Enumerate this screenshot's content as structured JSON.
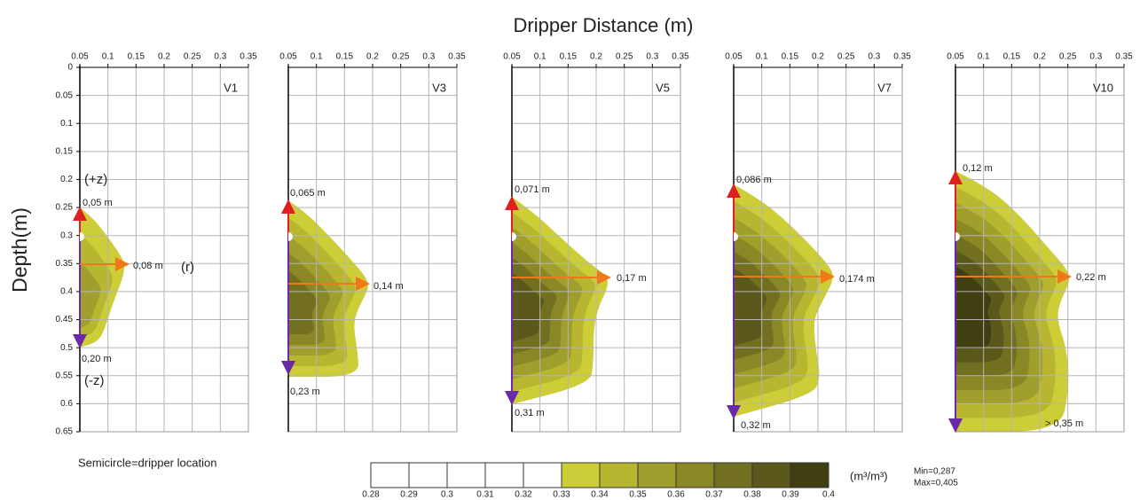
{
  "figure": {
    "title": "Dripper Distance (m)",
    "ylabel": "Depth(m)",
    "note": "Semicircle=dripper location"
  },
  "chart_data": [
    {
      "type": "contour",
      "title": "V1",
      "xlim": [
        0.05,
        0.35
      ],
      "xticks": [
        0.05,
        0.1,
        0.15,
        0.2,
        0.25,
        0.3,
        0.35
      ],
      "ylim": [
        0.65,
        0
      ],
      "yticks": [
        0,
        0.05,
        0.1,
        0.15,
        0.2,
        0.25,
        0.3,
        0.35,
        0.4,
        0.45,
        0.5,
        0.55,
        0.6,
        0.65
      ],
      "grid": true,
      "annotations": [
        "(+z)",
        "0,05 m",
        "0,08 m",
        "(r)",
        "0,20 m",
        "(-z)"
      ]
    },
    {
      "type": "contour",
      "title": "V3",
      "xlim": [
        0.05,
        0.35
      ],
      "xticks": [
        0.05,
        0.1,
        0.15,
        0.2,
        0.25,
        0.3,
        0.35
      ],
      "ylim": [
        0.65,
        0
      ],
      "yticks": [
        0,
        0.05,
        0.1,
        0.15,
        0.2,
        0.25,
        0.3,
        0.35,
        0.4,
        0.45,
        0.5,
        0.55,
        0.6,
        0.65
      ],
      "grid": true,
      "annotations": [
        "0,065 m",
        "0,14 m",
        "0,23 m"
      ]
    },
    {
      "type": "contour",
      "title": "V5",
      "xlim": [
        0.05,
        0.35
      ],
      "xticks": [
        0.05,
        0.1,
        0.15,
        0.2,
        0.25,
        0.3,
        0.35
      ],
      "ylim": [
        0.65,
        0
      ],
      "yticks": [
        0,
        0.05,
        0.1,
        0.15,
        0.2,
        0.25,
        0.3,
        0.35,
        0.4,
        0.45,
        0.5,
        0.55,
        0.6,
        0.65
      ],
      "grid": true,
      "annotations": [
        "0,071 m",
        "0,17 m",
        "0,31 m"
      ]
    },
    {
      "type": "contour",
      "title": "V7",
      "xlim": [
        0.05,
        0.35
      ],
      "xticks": [
        0.05,
        0.1,
        0.15,
        0.2,
        0.25,
        0.3,
        0.35
      ],
      "ylim": [
        0.65,
        0
      ],
      "yticks": [
        0,
        0.05,
        0.1,
        0.15,
        0.2,
        0.25,
        0.3,
        0.35,
        0.4,
        0.45,
        0.5,
        0.55,
        0.6,
        0.65
      ],
      "grid": true,
      "annotations": [
        "0,086 m",
        "0,174 m",
        "0,32 m"
      ]
    },
    {
      "type": "contour",
      "title": "V10",
      "xlim": [
        0.05,
        0.35
      ],
      "xticks": [
        0.05,
        0.1,
        0.15,
        0.2,
        0.25,
        0.3,
        0.35
      ],
      "ylim": [
        0.65,
        0
      ],
      "yticks": [
        0,
        0.05,
        0.1,
        0.15,
        0.2,
        0.25,
        0.3,
        0.35,
        0.4,
        0.45,
        0.5,
        0.55,
        0.6,
        0.65
      ],
      "grid": true,
      "annotations": [
        "0,12 m",
        "0,22 m",
        "> 0,35 m"
      ]
    }
  ],
  "colorbar": {
    "ticks": [
      0.28,
      0.29,
      0.3,
      0.31,
      0.32,
      0.33,
      0.34,
      0.35,
      0.36,
      0.37,
      0.38,
      0.39,
      0.4
    ],
    "colors": [
      "#ffffff",
      "#ffffff",
      "#ffffff",
      "#ffffff",
      "#ffffff",
      "#cdcd38",
      "#b8b531",
      "#a09e2c",
      "#8a8826",
      "#727020",
      "#5a581a",
      "#403f12"
    ],
    "unit": "(m³/m³)",
    "min_label": "Min=0,287",
    "max_label": "Max=0,405"
  }
}
